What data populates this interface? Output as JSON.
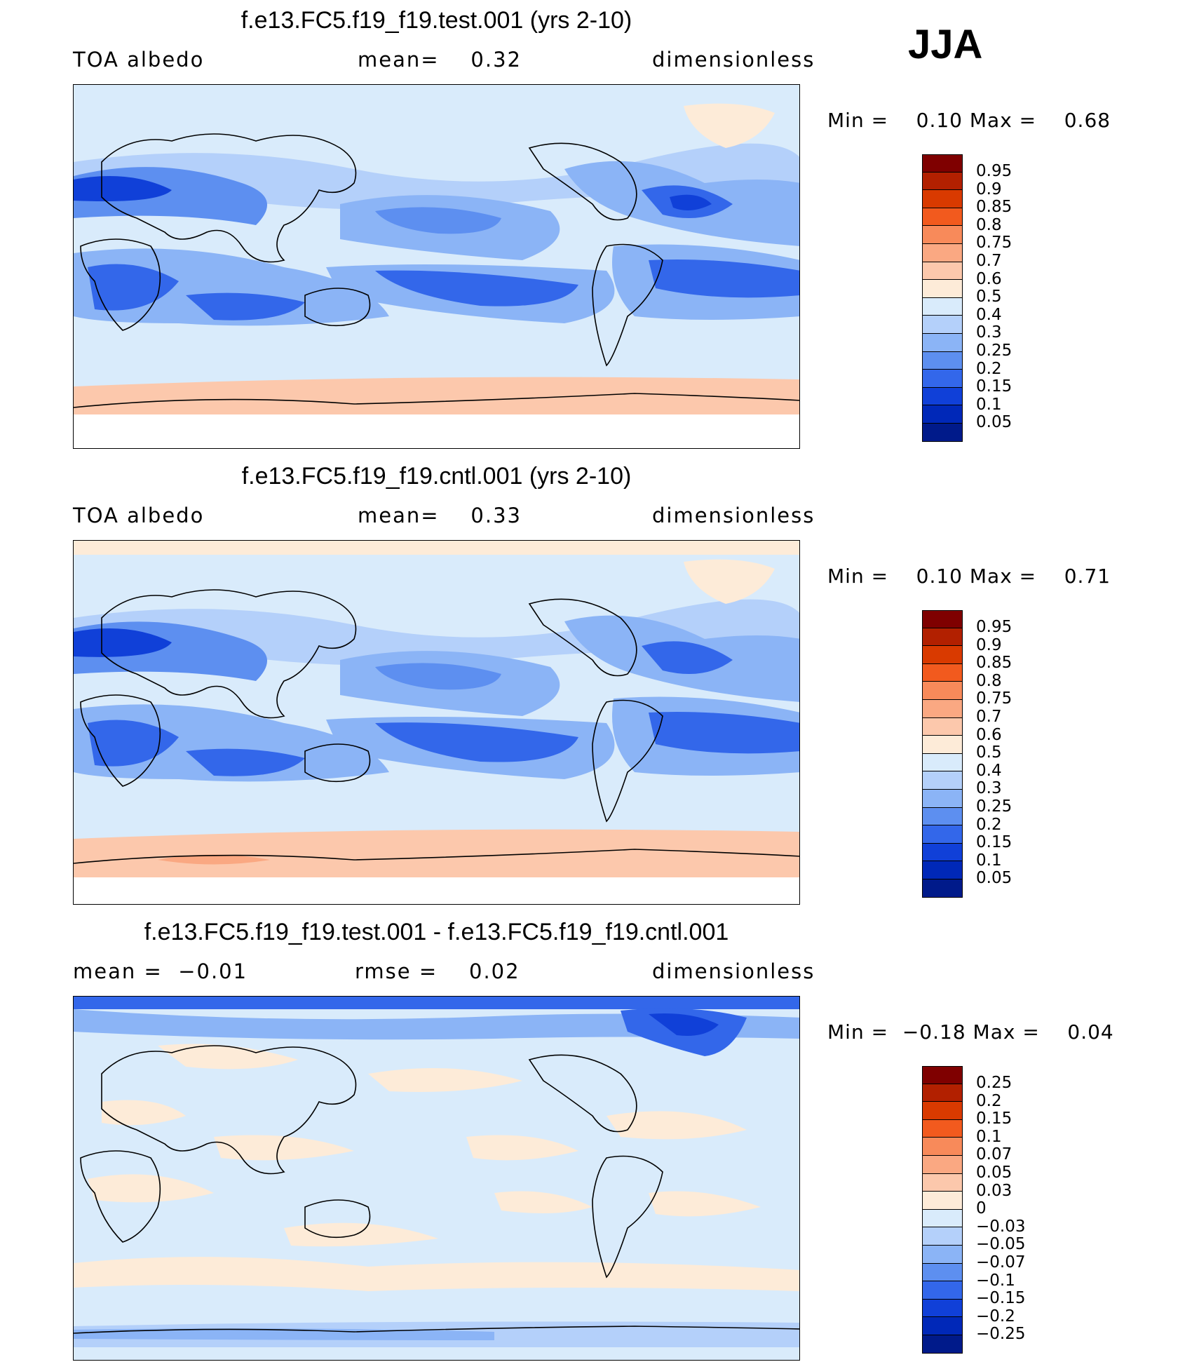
{
  "season": "JJA",
  "panels": [
    {
      "title": "f.e13.FC5.f19_f19.test.001 (yrs 2-10)",
      "left_label": "TOA albedo",
      "center_label": "mean=    0.32",
      "right_label": "dimensionless",
      "minmax": "Min =    0.10 Max =    0.68",
      "cbar_labels": [
        "0.95",
        "0.9",
        "0.85",
        "0.8",
        "0.75",
        "0.7",
        "0.6",
        "0.5",
        "0.4",
        "0.3",
        "0.25",
        "0.2",
        "0.15",
        "0.1",
        "0.05"
      ],
      "cbar_colors": [
        "#7f0000",
        "#b22000",
        "#d93a00",
        "#f25a1e",
        "#f88a5a",
        "#faa882",
        "#fcc8ac",
        "#fdebd8",
        "#d9ebfb",
        "#b4d0fa",
        "#8bb4f6",
        "#5d8ff0",
        "#3367ea",
        "#1040d8",
        "#0028b8",
        "#001a8a"
      ]
    },
    {
      "title": "f.e13.FC5.f19_f19.cntl.001 (yrs 2-10)",
      "left_label": "TOA albedo",
      "center_label": "mean=    0.33",
      "right_label": "dimensionless",
      "minmax": "Min =    0.10 Max =    0.71",
      "cbar_labels": [
        "0.95",
        "0.9",
        "0.85",
        "0.8",
        "0.75",
        "0.7",
        "0.6",
        "0.5",
        "0.4",
        "0.3",
        "0.25",
        "0.2",
        "0.15",
        "0.1",
        "0.05"
      ],
      "cbar_colors": [
        "#7f0000",
        "#b22000",
        "#d93a00",
        "#f25a1e",
        "#f88a5a",
        "#faa882",
        "#fcc8ac",
        "#fdebd8",
        "#d9ebfb",
        "#b4d0fa",
        "#8bb4f6",
        "#5d8ff0",
        "#3367ea",
        "#1040d8",
        "#0028b8",
        "#001a8a"
      ]
    },
    {
      "title": "f.e13.FC5.f19_f19.test.001 - f.e13.FC5.f19_f19.cntl.001",
      "left_label": "mean =  −0.01",
      "center_label": "rmse =    0.02",
      "right_label": "dimensionless",
      "minmax": "Min =  −0.18 Max =    0.04",
      "cbar_labels": [
        "0.25",
        "0.2",
        "0.15",
        "0.1",
        "0.07",
        "0.05",
        "0.03",
        "0",
        "−0.03",
        "−0.05",
        "−0.07",
        "−0.1",
        "−0.15",
        "−0.2",
        "−0.25"
      ],
      "cbar_colors": [
        "#7f0000",
        "#b22000",
        "#d93a00",
        "#f25a1e",
        "#f88a5a",
        "#faa882",
        "#fcc8ac",
        "#fdebd8",
        "#d9ebfb",
        "#b4d0fa",
        "#8bb4f6",
        "#5d8ff0",
        "#3367ea",
        "#1040d8",
        "#0028b8",
        "#001a8a"
      ]
    }
  ],
  "chart_data": [
    {
      "type": "heatmap",
      "title": "f.e13.FC5.f19_f19.test.001 (yrs 2-10)",
      "variable": "TOA albedo",
      "units": "dimensionless",
      "mean": 0.32,
      "min": 0.1,
      "max": 0.68,
      "levels": [
        0.05,
        0.1,
        0.15,
        0.2,
        0.25,
        0.3,
        0.4,
        0.5,
        0.6,
        0.7,
        0.75,
        0.8,
        0.85,
        0.9,
        0.95
      ]
    },
    {
      "type": "heatmap",
      "title": "f.e13.FC5.f19_f19.cntl.001 (yrs 2-10)",
      "variable": "TOA albedo",
      "units": "dimensionless",
      "mean": 0.33,
      "min": 0.1,
      "max": 0.71,
      "levels": [
        0.05,
        0.1,
        0.15,
        0.2,
        0.25,
        0.3,
        0.4,
        0.5,
        0.6,
        0.7,
        0.75,
        0.8,
        0.85,
        0.9,
        0.95
      ]
    },
    {
      "type": "heatmap",
      "title": "f.e13.FC5.f19_f19.test.001 - f.e13.FC5.f19_f19.cntl.001",
      "units": "dimensionless",
      "mean": -0.01,
      "rmse": 0.02,
      "min": -0.18,
      "max": 0.04,
      "levels": [
        -0.25,
        -0.2,
        -0.15,
        -0.1,
        -0.07,
        -0.05,
        -0.03,
        0,
        0.03,
        0.05,
        0.07,
        0.1,
        0.15,
        0.2,
        0.25
      ]
    }
  ]
}
